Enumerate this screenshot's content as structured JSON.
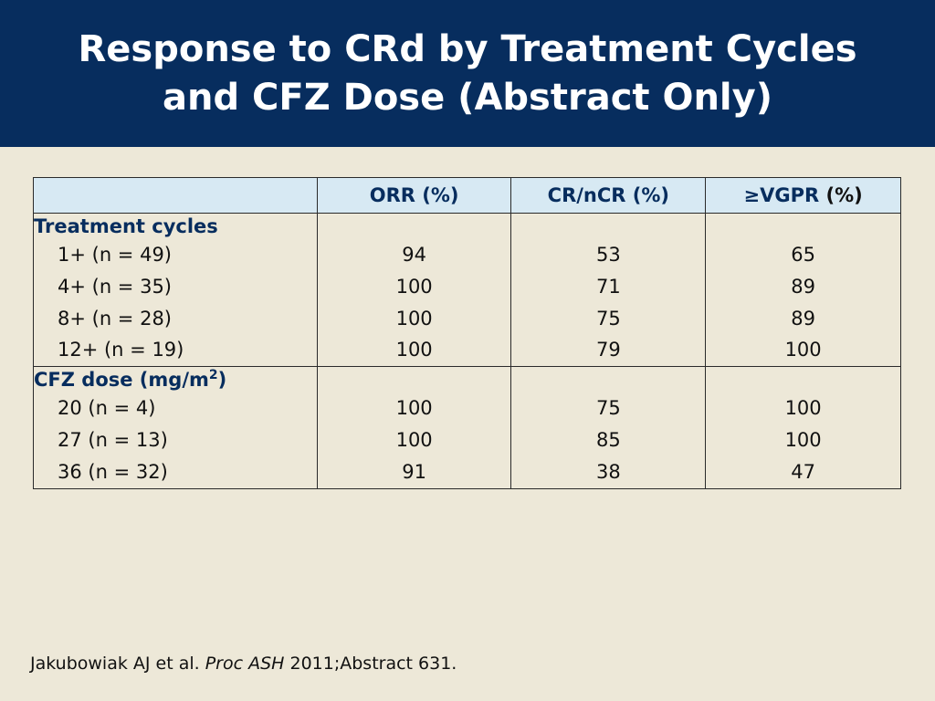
{
  "title": {
    "line1": "Response to CRd by Treatment Cycles",
    "line2": "and CFZ Dose (Abstract Only)"
  },
  "table": {
    "headers": {
      "orr": "ORR (%)",
      "crncr": "CR/nCR (%)",
      "vgpr_part1": "≥VGPR",
      "vgpr_part2": " (%)"
    },
    "groups": [
      {
        "label": "Treatment cycles",
        "rows": [
          {
            "label": "1+ (n = 49)",
            "orr": "94",
            "crncr": "53",
            "vgpr": "65"
          },
          {
            "label": "4+ (n = 35)",
            "orr": "100",
            "crncr": "71",
            "vgpr": "89"
          },
          {
            "label": "8+ (n = 28)",
            "orr": "100",
            "crncr": "75",
            "vgpr": "89"
          },
          {
            "label": "12+ (n = 19)",
            "orr": "100",
            "crncr": "79",
            "vgpr": "100"
          }
        ]
      },
      {
        "label": "CFZ dose (mg/m",
        "label_sup": "2",
        "label_suffix": ")",
        "rows": [
          {
            "label": "20 (n = 4)",
            "orr": "100",
            "crncr": "75",
            "vgpr": "100"
          },
          {
            "label": "27 (n = 13)",
            "orr": "100",
            "crncr": "85",
            "vgpr": "100"
          },
          {
            "label": "36 (n = 32)",
            "orr": "91",
            "crncr": "38",
            "vgpr": "47"
          }
        ]
      }
    ]
  },
  "footnote": {
    "authors": "Jakubowiak AJ et al. ",
    "journal": "Proc ASH",
    "rest": " 2011;Abstract 631."
  },
  "colors": {
    "title_bar": "#072d5e",
    "background": "#ede8d8",
    "header_row": "#d7e9f3",
    "group_label": "#072d5e"
  }
}
